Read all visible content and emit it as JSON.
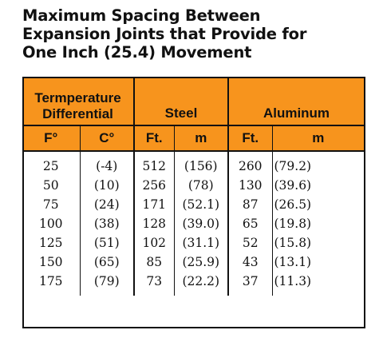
{
  "title": {
    "line1": "Maximum Spacing Between",
    "line2": "Expansion Joints that Provide for",
    "line3": "One Inch (25.4) Movement"
  },
  "header": {
    "temperature_line1": "Termperature",
    "temperature_line2": "Differential",
    "steel": "Steel",
    "aluminum": "Aluminum",
    "units": [
      "F°",
      "C°",
      "Ft.",
      "m",
      "Ft.",
      "m"
    ]
  },
  "rows": [
    [
      "25",
      "(-4)",
      "512",
      "(156)",
      "260",
      "(79.2)"
    ],
    [
      "50",
      "(10)",
      "256",
      "(78)",
      "130",
      "(39.6)"
    ],
    [
      "75",
      "(24)",
      "171",
      "(52.1)",
      "87",
      "(26.5)"
    ],
    [
      "100",
      "(38)",
      "128",
      "(39.0)",
      "65",
      "(19.8)"
    ],
    [
      "125",
      "(51)",
      "102",
      "(31.1)",
      "52",
      "(15.8)"
    ],
    [
      "150",
      "(65)",
      "85",
      "(25.9)",
      "43",
      "(13.1)"
    ],
    [
      "175",
      "(79)",
      "73",
      "(22.2)",
      "37",
      "(11.3)"
    ]
  ],
  "colors": {
    "header_background": "#f7941d",
    "border": "#111111"
  }
}
